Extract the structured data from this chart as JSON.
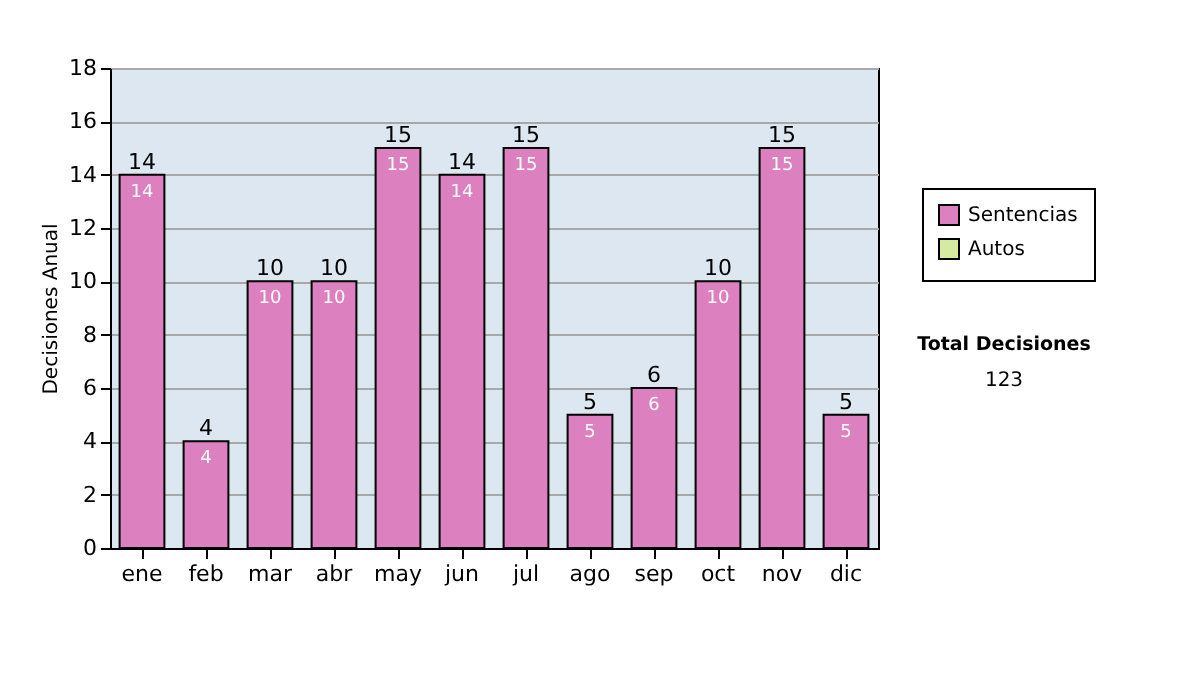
{
  "chart_data": {
    "type": "bar",
    "stacked": true,
    "ylabel": "Decisiones Anual",
    "categories": [
      "ene",
      "feb",
      "mar",
      "abr",
      "may",
      "jun",
      "jul",
      "ago",
      "sep",
      "oct",
      "nov",
      "dic"
    ],
    "series": [
      {
        "name": "Sentencias",
        "color": "#dd80c0",
        "values": [
          14,
          4,
          10,
          10,
          15,
          14,
          15,
          5,
          6,
          10,
          15,
          5
        ],
        "value_labels": [
          "14",
          "4",
          "10",
          "10",
          "15",
          "14",
          "15",
          "5",
          "6",
          "10",
          "15",
          "5"
        ]
      },
      {
        "name": "Autos",
        "color": "#d4eaa0",
        "values": [
          0,
          0,
          0,
          0,
          0,
          0,
          0,
          0,
          0,
          0,
          0,
          0
        ]
      }
    ],
    "totals": [
      "14",
      "4",
      "10",
      "10",
      "15",
      "14",
      "15",
      "5",
      "6",
      "10",
      "15",
      "5"
    ],
    "ylim": [
      0,
      18
    ],
    "yticks": [
      0,
      2,
      4,
      6,
      8,
      10,
      12,
      14,
      16,
      18
    ],
    "grid": "y",
    "legend": "right",
    "annotations": [
      "Total Decisiones",
      "123"
    ]
  }
}
